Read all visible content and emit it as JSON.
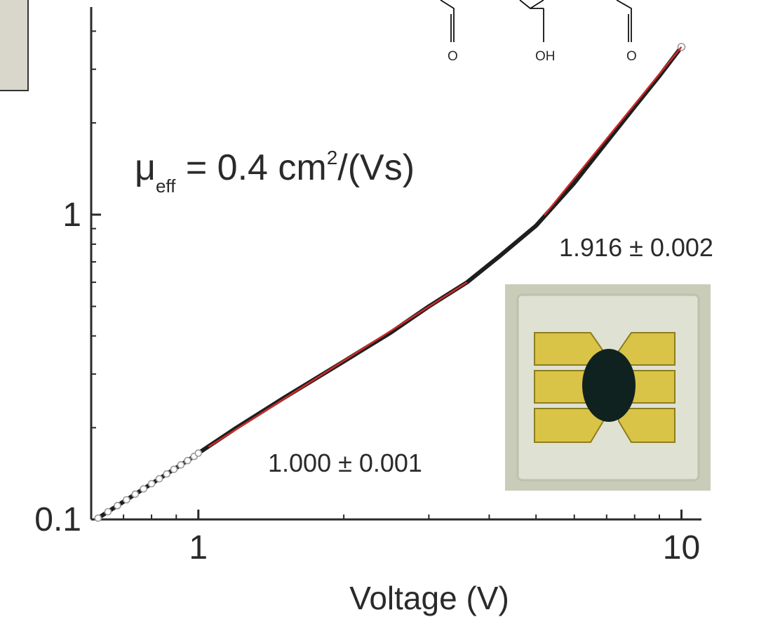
{
  "chart_data": {
    "type": "scatter",
    "xscale": "log",
    "yscale": "log",
    "xlim": [
      0.6,
      11
    ],
    "ylim": [
      0.1,
      4.8
    ],
    "xlabel": "Voltage (V)",
    "ylabel": "",
    "x_ticks": [
      {
        "value": 1,
        "label": "1"
      },
      {
        "value": 10,
        "label": "10"
      }
    ],
    "y_ticks": [
      {
        "value": 0.1,
        "label": "0.1"
      },
      {
        "value": 1,
        "label": "1"
      }
    ],
    "annotations": {
      "mobility": {
        "prefix": "μ",
        "sub": "eff",
        "mid": " = 0.4 cm",
        "sup": "2",
        "suffix": "/(Vs)"
      },
      "slope_high": "1.916 ± 0.002",
      "slope_low": "1.000 ± 0.001",
      "molecule_labels": [
        "O",
        "OH",
        "O"
      ]
    },
    "series": [
      {
        "kind": "measured",
        "marker": "open-circle",
        "x": [
          0.62,
          0.65,
          0.68,
          0.71,
          0.74,
          0.77,
          0.8,
          0.83,
          0.86,
          0.89,
          0.92,
          0.95,
          0.98,
          1.0,
          1.2,
          1.5,
          2.0,
          2.5,
          3.0,
          3.6,
          4.2,
          5.0,
          6.0,
          7.0,
          8.0,
          9.0,
          10.0
        ],
        "y": [
          0.101,
          0.106,
          0.111,
          0.116,
          0.121,
          0.126,
          0.131,
          0.136,
          0.141,
          0.146,
          0.151,
          0.156,
          0.161,
          0.165,
          0.2,
          0.25,
          0.33,
          0.41,
          0.5,
          0.6,
          0.73,
          0.92,
          1.27,
          1.73,
          2.26,
          2.85,
          3.55
        ]
      },
      {
        "kind": "fit",
        "color": "#d42a2a",
        "x": [
          1.05,
          3.6
        ],
        "y": [
          0.173,
          0.6
        ]
      },
      {
        "kind": "fit",
        "color": "#d42a2a",
        "x": [
          5.2,
          10.0
        ],
        "y": [
          0.995,
          3.55
        ]
      }
    ]
  },
  "colors": {
    "axis": "#2a2a2a",
    "data": "#1e1e1e",
    "fit": "#d42a2a",
    "marker_edge": "#9a9a9a",
    "photo_bg": "#c9ccb9",
    "electrode": "#d9c447",
    "electrode_dark": "#8e7d1d",
    "film": "#10221f",
    "corner_panel": "#d9d6cc"
  }
}
